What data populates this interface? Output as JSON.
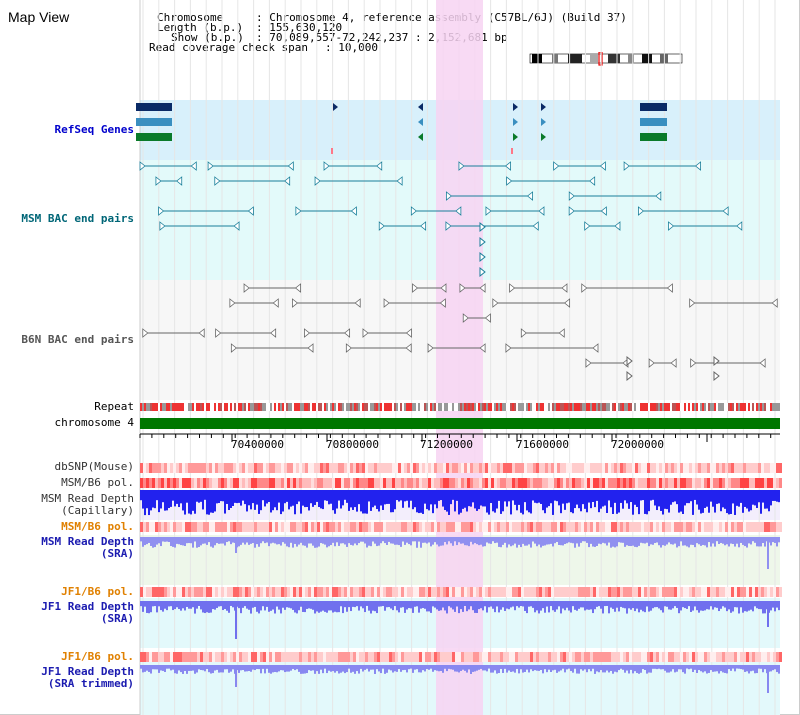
{
  "title": "Map View",
  "info": {
    "chromosome_label": "Chromosome",
    "chromosome_value": ": Chromosome 4, reference assembly (C57BL/6J) (Build 37)",
    "length_label": "Length (b.p.)",
    "length_value": ": 155,630,120",
    "show_label": "Show (b.p.)",
    "show_value": ": 70,089,557-72,242,237 : 2,152,681 bp",
    "coverage_label": "Read coverage check span",
    "coverage_value": ": 10,000"
  },
  "tracks": {
    "refseq": "RefSeq Genes",
    "msm_bac": "MSM BAC end pairs",
    "b6n_bac": "B6N BAC end pairs",
    "repeat": "Repeat",
    "chromosome": "chromosome 4",
    "dbsnp": "dbSNP(Mouse)",
    "msm_b6_pol": "MSM/B6 pol.",
    "msm_read_depth_1": "MSM Read Depth",
    "msm_read_depth_1b": "(Capillary)",
    "msm_b6_pol_2": "MSM/B6 pol.",
    "msm_read_depth_2": "MSM Read Depth",
    "msm_read_depth_2b": "(SRA)",
    "jf1_b6_pol": "JF1/B6 pol.",
    "jf1_read_depth": "JF1 Read Depth",
    "jf1_read_depth_b": "(SRA)",
    "jf1_b6_pol_2": "JF1/B6 pol.",
    "jf1_read_depth_2": "JF1 Read Depth",
    "jf1_read_depth_2b": "(SRA trimmed)"
  },
  "axis_ticks": [
    "70400000",
    "70800000",
    "71200000",
    "71600000",
    "72000000"
  ],
  "colors": {
    "refseq_label": "#0000cc",
    "msm_bac_label": "#006677",
    "b6n_label": "#555555",
    "orange_label": "#e08000",
    "blue_label": "#1b1bb0",
    "highlight": "#f7d4f2",
    "chromosome_bar": "#007700"
  }
}
